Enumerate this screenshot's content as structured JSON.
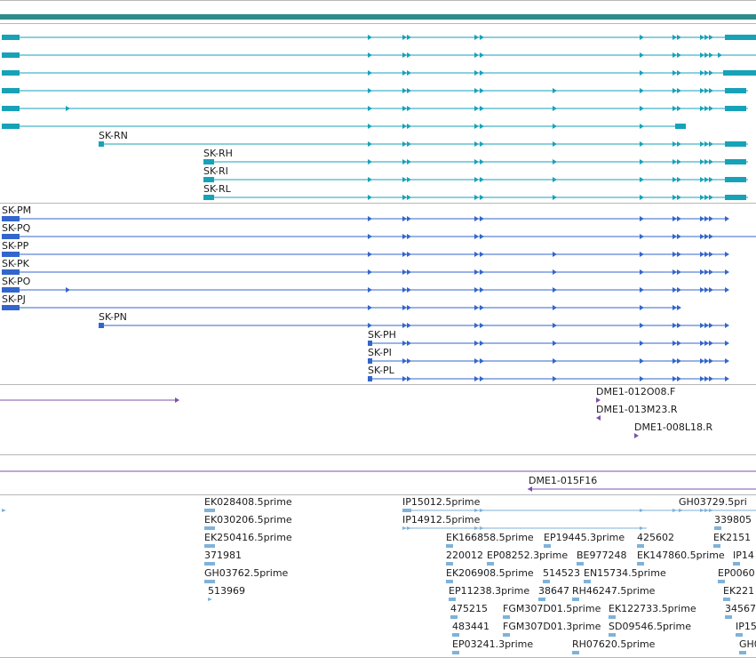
{
  "colors": {
    "summary_bar": "#2e8b8b",
    "gene_track": "#17a2b8",
    "protein_track": "#3366cc",
    "clone_track": "#7b52ab",
    "est_track": "#7fb2d9",
    "separator": "#b8b8b8"
  },
  "gene_models": {
    "labels": [
      "SK-RN",
      "SK-RH",
      "SK-RI",
      "SK-RL"
    ]
  },
  "protein_models": {
    "labels": [
      "SK-PM",
      "SK-PQ",
      "SK-PP",
      "SK-PK",
      "SK-PO",
      "SK-PJ",
      "SK-PN",
      "SK-PH",
      "SK-PI",
      "SK-PL"
    ]
  },
  "clones": {
    "labels": [
      "DME1-012O08.F",
      "DME1-013M23.R",
      "DME1-008L18.R",
      "DME1-015F16"
    ]
  },
  "ests": {
    "labels": [
      "EK028408.5prime",
      "EK030206.5prime",
      "EK250416.5prime",
      "371981",
      "GH03762.5prime",
      "513969",
      "IP15012.5prime",
      "IP14912.5prime",
      "GH03729.5pri",
      "339805",
      "EK166858.5prime",
      "EP19445.3prime",
      "425602",
      "EK2151",
      "220012",
      "EP08252.3prime",
      "BE977248",
      "EK147860.5prime",
      "IP14",
      "EK206908.5prime",
      "514523",
      "EN15734.5prime",
      "EP0060",
      "EP11238.3prime",
      "38647",
      "RH46247.5prime",
      "EK221",
      "475215",
      "FGM307D01.5prime",
      "EK122733.5prime",
      "34567",
      "483441",
      "FGM307D01.3prime",
      "SD09546.5prime",
      "IP15",
      "EP03241.3prime",
      "RH07620.5prime",
      "GH0"
    ]
  }
}
